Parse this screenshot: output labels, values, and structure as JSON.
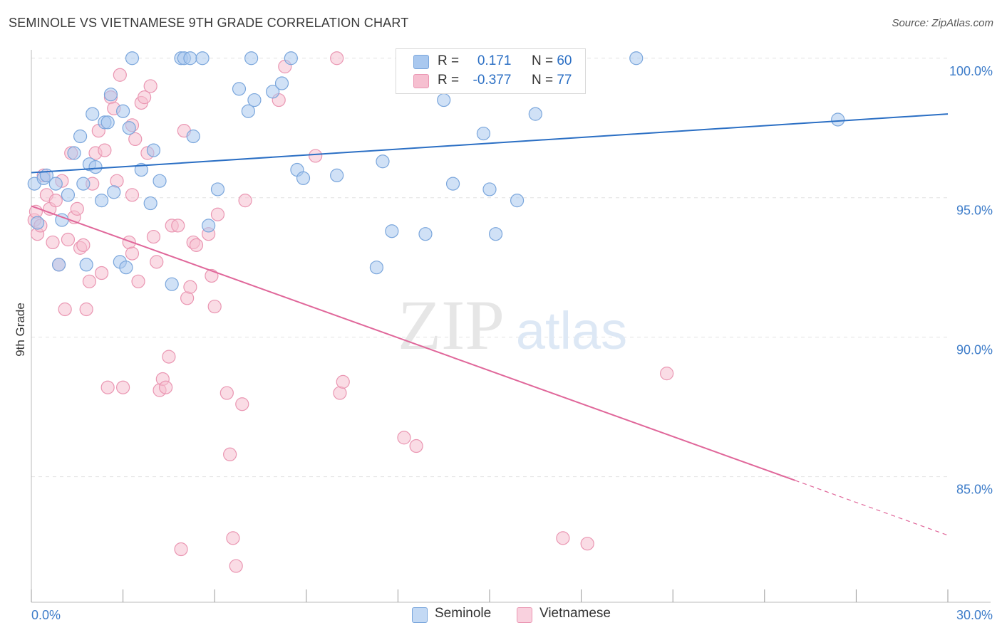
{
  "header": {
    "title": "SEMINOLE VS VIETNAMESE 9TH GRADE CORRELATION CHART",
    "source": "Source: ZipAtlas.com"
  },
  "watermark": {
    "zip": "ZIP",
    "atlas": "atlas"
  },
  "legend": {
    "r_label": "R =",
    "n_label": "N =",
    "rows": [
      {
        "name": "Seminole",
        "r": "0.171",
        "n": "60"
      },
      {
        "name": "Vietnamese",
        "r": "-0.377",
        "n": "77"
      }
    ]
  },
  "colors": {
    "seminole_fill": "#a9c8ef",
    "seminole_stroke": "#7aa6dc",
    "seminole_line": "#2b6fc4",
    "vietnamese_fill": "#f6bfd0",
    "vietnamese_stroke": "#ea96b2",
    "vietnamese_line": "#e0679a",
    "tick_label": "#3d7cc9",
    "grid": "#e2e2e2"
  },
  "chart_data": {
    "type": "scatter",
    "title": "SEMINOLE VS VIETNAMESE 9TH GRADE CORRELATION CHART",
    "xlabel": "",
    "ylabel": "9th Grade",
    "xlim": [
      0,
      30
    ],
    "ylim": [
      80.5,
      100.3
    ],
    "x_tick_labels": [
      "0.0%",
      "30.0%"
    ],
    "y_ticks": [
      85,
      90,
      95,
      100
    ],
    "y_tick_labels": [
      "85.0%",
      "90.0%",
      "95.0%",
      "100.0%"
    ],
    "grid": true,
    "legend_position": "bottom-center",
    "series": [
      {
        "name": "Seminole",
        "trend": {
          "x": [
            0,
            30
          ],
          "y": [
            95.9,
            98.0
          ],
          "dashed_from": null
        },
        "points": [
          [
            0.1,
            95.5
          ],
          [
            0.2,
            94.1
          ],
          [
            0.4,
            95.7
          ],
          [
            0.5,
            95.8
          ],
          [
            0.8,
            95.5
          ],
          [
            0.9,
            92.6
          ],
          [
            1.0,
            94.2
          ],
          [
            1.2,
            95.1
          ],
          [
            1.4,
            96.6
          ],
          [
            1.6,
            97.2
          ],
          [
            1.7,
            95.5
          ],
          [
            1.8,
            92.6
          ],
          [
            1.9,
            96.2
          ],
          [
            2.0,
            98.0
          ],
          [
            2.1,
            96.1
          ],
          [
            2.3,
            94.9
          ],
          [
            2.4,
            97.7
          ],
          [
            2.5,
            97.7
          ],
          [
            2.6,
            98.7
          ],
          [
            2.7,
            95.2
          ],
          [
            2.9,
            92.7
          ],
          [
            3.0,
            98.1
          ],
          [
            3.1,
            92.5
          ],
          [
            3.2,
            97.5
          ],
          [
            3.3,
            100.0
          ],
          [
            3.6,
            96.0
          ],
          [
            3.9,
            94.8
          ],
          [
            4.0,
            96.7
          ],
          [
            4.2,
            95.6
          ],
          [
            4.6,
            91.9
          ],
          [
            4.9,
            100.0
          ],
          [
            5.0,
            100.0
          ],
          [
            5.2,
            100.0
          ],
          [
            5.3,
            97.2
          ],
          [
            5.6,
            100.0
          ],
          [
            5.8,
            94.0
          ],
          [
            6.1,
            95.3
          ],
          [
            6.8,
            98.9
          ],
          [
            7.1,
            98.1
          ],
          [
            7.2,
            100.0
          ],
          [
            7.3,
            98.5
          ],
          [
            7.9,
            98.8
          ],
          [
            8.2,
            99.1
          ],
          [
            8.5,
            100.0
          ],
          [
            8.7,
            96.0
          ],
          [
            8.9,
            95.7
          ],
          [
            10.0,
            95.8
          ],
          [
            11.3,
            92.5
          ],
          [
            11.5,
            96.3
          ],
          [
            11.8,
            93.8
          ],
          [
            12.9,
            93.7
          ],
          [
            13.5,
            98.5
          ],
          [
            13.8,
            95.5
          ],
          [
            14.8,
            97.3
          ],
          [
            15.0,
            95.3
          ],
          [
            15.2,
            93.7
          ],
          [
            15.9,
            94.9
          ],
          [
            16.5,
            98.0
          ],
          [
            19.8,
            100.0
          ],
          [
            26.4,
            97.8
          ]
        ]
      },
      {
        "name": "Vietnamese",
        "trend": {
          "x": [
            0,
            30
          ],
          "y": [
            94.7,
            82.9
          ],
          "dashed_from": 25
        },
        "points": [
          [
            0.1,
            94.2
          ],
          [
            0.2,
            93.7
          ],
          [
            0.3,
            94.0
          ],
          [
            0.4,
            95.8
          ],
          [
            0.5,
            95.1
          ],
          [
            0.6,
            94.6
          ],
          [
            0.7,
            93.4
          ],
          [
            0.8,
            94.9
          ],
          [
            0.9,
            92.6
          ],
          [
            1.0,
            95.6
          ],
          [
            1.1,
            91.0
          ],
          [
            1.2,
            93.5
          ],
          [
            1.3,
            96.6
          ],
          [
            1.4,
            94.3
          ],
          [
            1.5,
            94.6
          ],
          [
            1.6,
            93.2
          ],
          [
            1.7,
            93.3
          ],
          [
            1.8,
            91.0
          ],
          [
            1.9,
            92.0
          ],
          [
            2.0,
            95.5
          ],
          [
            2.1,
            96.6
          ],
          [
            2.2,
            97.4
          ],
          [
            2.3,
            92.3
          ],
          [
            2.4,
            96.7
          ],
          [
            2.5,
            88.2
          ],
          [
            2.6,
            98.6
          ],
          [
            2.7,
            98.2
          ],
          [
            2.8,
            95.6
          ],
          [
            2.9,
            99.4
          ],
          [
            3.0,
            88.2
          ],
          [
            3.2,
            93.4
          ],
          [
            3.3,
            93.0
          ],
          [
            3.3,
            95.1
          ],
          [
            3.3,
            97.6
          ],
          [
            3.4,
            97.1
          ],
          [
            3.5,
            92.0
          ],
          [
            3.6,
            98.4
          ],
          [
            3.7,
            98.6
          ],
          [
            3.8,
            96.6
          ],
          [
            3.9,
            99.0
          ],
          [
            4.0,
            93.6
          ],
          [
            4.1,
            92.7
          ],
          [
            4.2,
            88.1
          ],
          [
            4.3,
            88.5
          ],
          [
            4.4,
            88.2
          ],
          [
            4.5,
            89.3
          ],
          [
            4.6,
            94.0
          ],
          [
            4.8,
            94.0
          ],
          [
            4.9,
            82.4
          ],
          [
            5.0,
            97.4
          ],
          [
            5.1,
            91.4
          ],
          [
            5.2,
            91.8
          ],
          [
            5.3,
            93.4
          ],
          [
            5.4,
            93.3
          ],
          [
            5.8,
            93.7
          ],
          [
            5.9,
            92.2
          ],
          [
            6.0,
            91.1
          ],
          [
            6.1,
            94.4
          ],
          [
            6.4,
            88.0
          ],
          [
            6.5,
            85.8
          ],
          [
            6.6,
            82.8
          ],
          [
            6.7,
            81.8
          ],
          [
            6.9,
            87.6
          ],
          [
            7.0,
            94.9
          ],
          [
            8.1,
            98.5
          ],
          [
            8.3,
            99.7
          ],
          [
            9.3,
            96.5
          ],
          [
            10.0,
            100.0
          ],
          [
            10.1,
            88.0
          ],
          [
            10.2,
            88.4
          ],
          [
            12.2,
            86.4
          ],
          [
            12.6,
            86.1
          ],
          [
            15.4,
            100.0
          ],
          [
            17.4,
            82.8
          ],
          [
            18.2,
            82.6
          ],
          [
            20.8,
            88.7
          ],
          [
            0.15,
            94.5
          ]
        ]
      }
    ]
  }
}
